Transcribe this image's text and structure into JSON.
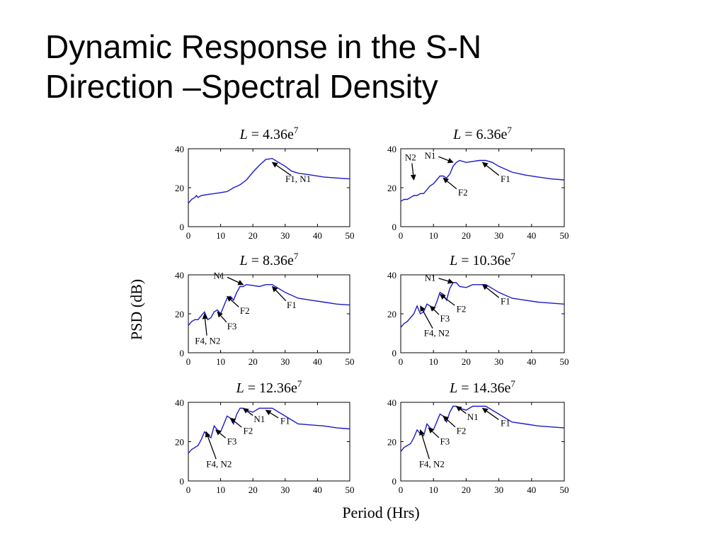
{
  "slide": {
    "title_line1": "Dynamic Response in the S-N",
    "title_line2": "Direction –Spectral Density"
  },
  "chart_data": {
    "type": "line",
    "ylabel": "PSD (dB)",
    "xlabel": "Period (Hrs)",
    "xlim": [
      0,
      50
    ],
    "ylim": [
      0,
      40
    ],
    "xticks": [
      "0",
      "10",
      "20",
      "30",
      "40",
      "50"
    ],
    "yticks": [
      "0",
      "20",
      "40"
    ],
    "line_color": "#1a1acc",
    "panels": [
      {
        "title_base": "4.36e",
        "title_exp": "7",
        "x": [
          0,
          1,
          2,
          2.5,
          3,
          4,
          6,
          8,
          10,
          12,
          13,
          14,
          16,
          18,
          20,
          22,
          24,
          26,
          28,
          30,
          32,
          34,
          38,
          42,
          46,
          50
        ],
        "y": [
          12,
          14,
          15,
          16,
          15,
          16,
          16.5,
          17,
          17.5,
          18,
          19,
          20,
          21.5,
          24,
          28,
          31.5,
          34.5,
          35,
          33,
          31,
          28.5,
          27.5,
          26.5,
          25.5,
          25,
          24.5
        ],
        "annotations": [
          {
            "text": "F1, N1",
            "tx": 34,
            "ty": 23,
            "ax": 26,
            "ay": 33
          }
        ]
      },
      {
        "title_base": "6.36e",
        "title_exp": "7",
        "x": [
          0,
          1,
          2,
          3,
          4,
          5,
          6,
          7,
          8,
          9,
          10,
          11,
          12,
          13,
          14,
          15,
          16,
          17,
          18,
          20,
          22,
          24,
          26,
          28,
          30,
          34,
          38,
          42,
          46,
          50
        ],
        "y": [
          13,
          14,
          14,
          15,
          16,
          16,
          17,
          17,
          19,
          21,
          22,
          24,
          26,
          26,
          25,
          27,
          31,
          33,
          34,
          33,
          33.5,
          34,
          34,
          33,
          31,
          28,
          26.5,
          25.5,
          24.5,
          24
        ],
        "annotations": [
          {
            "text": "N2",
            "tx": 3,
            "ty": 34,
            "ax": 4,
            "ay": 24
          },
          {
            "text": "N1",
            "tx": 9,
            "ty": 35,
            "ax": 16,
            "ay": 33
          },
          {
            "text": "F1",
            "tx": 32,
            "ty": 23,
            "ax": 25,
            "ay": 33
          },
          {
            "text": "F2",
            "tx": 19,
            "ty": 16,
            "ax": 13,
            "ay": 25
          }
        ]
      },
      {
        "title_base": "8.36e",
        "title_exp": "7",
        "x": [
          0,
          1,
          2,
          3,
          4,
          5,
          6,
          7,
          8,
          9,
          10,
          11,
          12,
          13,
          14,
          15,
          16,
          17,
          18,
          20,
          22,
          24,
          26,
          28,
          30,
          34,
          38,
          42,
          46,
          50
        ],
        "y": [
          14,
          16,
          17,
          17,
          19,
          21,
          17,
          18,
          21,
          22,
          20,
          24,
          28,
          29,
          27,
          31,
          34,
          34,
          35,
          34.5,
          34,
          35,
          35,
          33,
          31,
          28,
          27,
          26,
          25,
          24.5
        ],
        "annotations": [
          {
            "text": "N1",
            "tx": 9.5,
            "ty": 38,
            "ax": 17,
            "ay": 35
          },
          {
            "text": "F1",
            "tx": 32,
            "ty": 23,
            "ax": 26,
            "ay": 34
          },
          {
            "text": "F2",
            "tx": 17.5,
            "ty": 20,
            "ax": 12,
            "ay": 29
          },
          {
            "text": "F3",
            "tx": 13.5,
            "ty": 12,
            "ax": 9,
            "ay": 21
          },
          {
            "text": "F4, N2",
            "tx": 6,
            "ty": 4.5,
            "ax": 5,
            "ay": 20
          }
        ]
      },
      {
        "title_base": "10.36e",
        "title_exp": "7",
        "x": [
          0,
          1,
          2,
          3,
          4,
          5,
          6,
          7,
          8,
          9,
          10,
          11,
          12,
          13,
          14,
          15,
          16,
          17,
          18,
          20,
          22,
          24,
          26,
          28,
          30,
          34,
          38,
          42,
          46,
          50
        ],
        "y": [
          13,
          15,
          16,
          18,
          20,
          24,
          20,
          21,
          25,
          24,
          22,
          26,
          31,
          30,
          27,
          33,
          36,
          36,
          34,
          33.5,
          35,
          35,
          35,
          33,
          31,
          28,
          27,
          26,
          25.5,
          25
        ],
        "annotations": [
          {
            "text": "N1",
            "tx": 9,
            "ty": 37,
            "ax": 16,
            "ay": 36
          },
          {
            "text": "F1",
            "tx": 32,
            "ty": 25,
            "ax": 25,
            "ay": 35
          },
          {
            "text": "F2",
            "tx": 18.5,
            "ty": 21,
            "ax": 12,
            "ay": 30
          },
          {
            "text": "F3",
            "tx": 13.5,
            "ty": 16,
            "ax": 9,
            "ay": 24
          },
          {
            "text": "F4, N2",
            "tx": 11,
            "ty": 8.5,
            "ax": 6,
            "ay": 24
          }
        ]
      },
      {
        "title_base": "12.36e",
        "title_exp": "7",
        "x": [
          0,
          1,
          2,
          3,
          4,
          5,
          6,
          7,
          8,
          9,
          10,
          11,
          12,
          13,
          14,
          15,
          16,
          17,
          18,
          20,
          22,
          24,
          26,
          28,
          30,
          34,
          38,
          42,
          46,
          50
        ],
        "y": [
          14,
          16,
          17,
          18,
          21,
          25,
          23,
          22,
          28,
          26,
          25,
          29,
          33,
          32,
          29,
          34,
          37,
          37,
          36,
          35,
          37,
          37,
          37,
          35,
          33,
          29,
          28.5,
          28,
          27,
          26.5
        ],
        "annotations": [
          {
            "text": "N1",
            "tx": 22,
            "ty": 30,
            "ax": 17,
            "ay": 37
          },
          {
            "text": "F1",
            "tx": 30,
            "ty": 29,
            "ax": 24,
            "ay": 36
          },
          {
            "text": "F2",
            "tx": 18.5,
            "ty": 24,
            "ax": 13,
            "ay": 32
          },
          {
            "text": "F3",
            "tx": 13.5,
            "ty": 18.5,
            "ax": 8.5,
            "ay": 26
          },
          {
            "text": "F4, N2",
            "tx": 9.5,
            "ty": 7,
            "ax": 5.5,
            "ay": 25
          }
        ]
      },
      {
        "title_base": "14.36e",
        "title_exp": "7",
        "x": [
          0,
          1,
          2,
          3,
          4,
          5,
          6,
          7,
          8,
          9,
          10,
          11,
          12,
          13,
          14,
          15,
          16,
          17,
          18,
          20,
          22,
          24,
          26,
          28,
          30,
          34,
          38,
          42,
          46,
          50
        ],
        "y": [
          15,
          17,
          18,
          19,
          22,
          26,
          24,
          23,
          29,
          27,
          26,
          30,
          34,
          33,
          30,
          35,
          38,
          38,
          37,
          36,
          38,
          38,
          38,
          36,
          34,
          30,
          29,
          28,
          27.5,
          27
        ],
        "annotations": [
          {
            "text": "N1",
            "tx": 22,
            "ty": 31,
            "ax": 17,
            "ay": 38
          },
          {
            "text": "F1",
            "tx": 32,
            "ty": 28,
            "ax": 25,
            "ay": 37
          },
          {
            "text": "F2",
            "tx": 18.5,
            "ty": 24,
            "ax": 13,
            "ay": 33
          },
          {
            "text": "F3",
            "tx": 13.5,
            "ty": 18.5,
            "ax": 8.5,
            "ay": 27
          },
          {
            "text": "F4, N2",
            "tx": 9.5,
            "ty": 7,
            "ax": 6,
            "ay": 26
          }
        ]
      }
    ]
  }
}
